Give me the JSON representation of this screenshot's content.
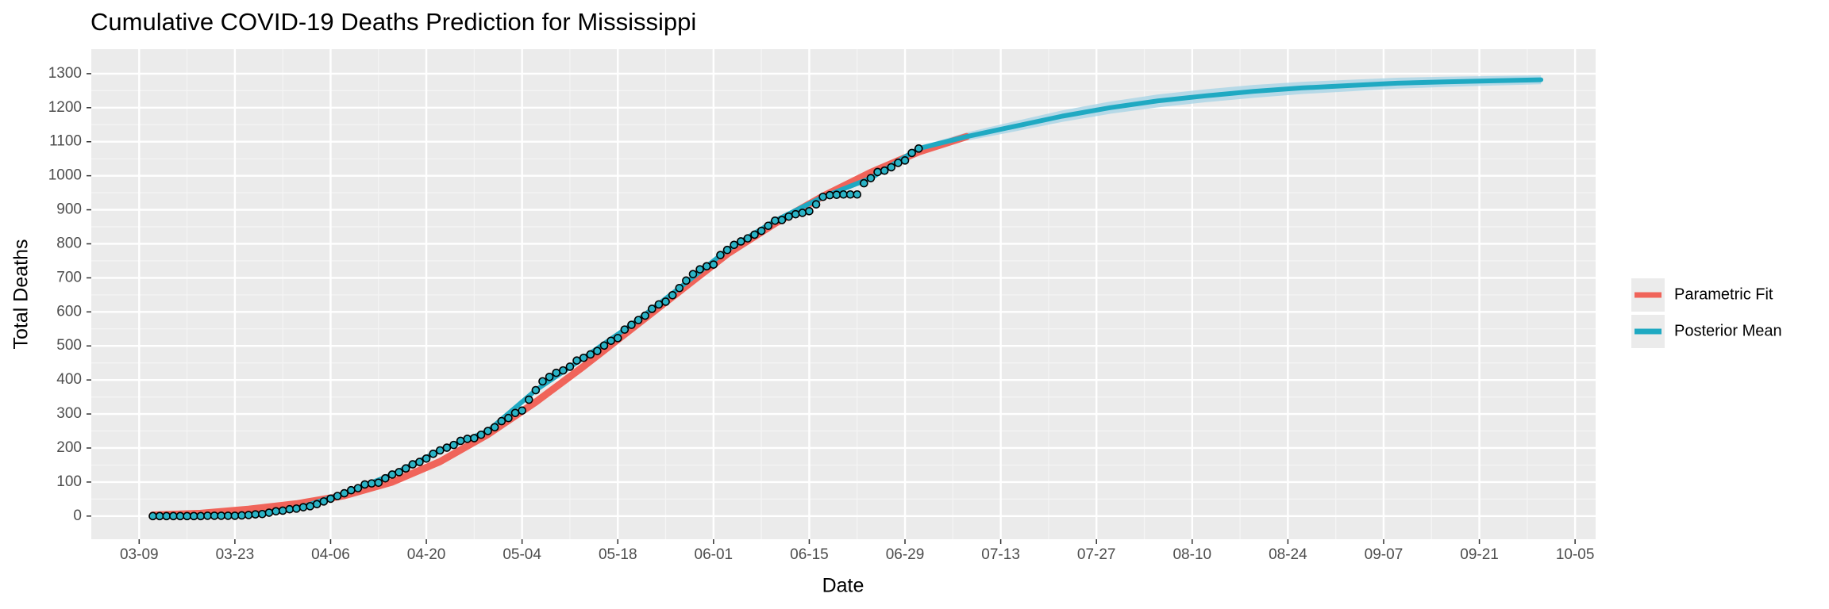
{
  "chart_data": {
    "type": "line",
    "title": "Cumulative COVID-19 Deaths Prediction for Mississippi",
    "x_label": "Date",
    "y_label": "Total Deaths",
    "xlim": [
      "03-02",
      "10-08"
    ],
    "ylim": [
      -68,
      1372
    ],
    "xticks": [
      "03-09",
      "03-23",
      "04-06",
      "04-20",
      "05-04",
      "05-18",
      "06-01",
      "06-15",
      "06-29",
      "07-13",
      "07-27",
      "08-10",
      "08-24",
      "09-07",
      "09-21",
      "10-05"
    ],
    "yticks": [
      0,
      100,
      200,
      300,
      400,
      500,
      600,
      700,
      800,
      900,
      1000,
      1100,
      1200,
      1300
    ],
    "grid": true,
    "legend": "right",
    "series": [
      {
        "name": "Parametric Fit",
        "color": "#f0645a",
        "x": [
          "03-11",
          "03-18",
          "03-25",
          "04-01",
          "04-08",
          "04-15",
          "04-22",
          "04-29",
          "05-06",
          "05-13",
          "05-20",
          "05-27",
          "06-03",
          "06-10",
          "06-17",
          "06-24",
          "07-01",
          "07-08"
        ],
        "values": [
          3,
          8,
          20,
          36,
          60,
          100,
          160,
          240,
          335,
          440,
          550,
          660,
          770,
          860,
          940,
          1010,
          1070,
          1115
        ]
      },
      {
        "name": "Posterior Mean",
        "color": "#1fa9c2",
        "band_color": "#a9d4e6",
        "x": [
          "03-11",
          "03-18",
          "03-25",
          "04-01",
          "04-08",
          "04-15",
          "04-22",
          "04-29",
          "05-06",
          "05-13",
          "05-20",
          "05-27",
          "06-03",
          "06-10",
          "06-17",
          "06-24",
          "07-01",
          "07-08",
          "07-15",
          "07-22",
          "07-29",
          "08-05",
          "08-12",
          "08-19",
          "08-26",
          "09-02",
          "09-09",
          "09-16",
          "09-23",
          "09-30"
        ],
        "values": [
          0,
          0,
          3,
          22,
          67,
          122,
          193,
          250,
          370,
          465,
          562,
          670,
          782,
          868,
          938,
          993,
          1080,
          1115,
          1145,
          1175,
          1200,
          1220,
          1235,
          1248,
          1258,
          1265,
          1272,
          1276,
          1279,
          1282
        ],
        "band": {
          "lower": [
            0,
            0,
            2,
            20,
            64,
            118,
            188,
            245,
            364,
            459,
            556,
            664,
            776,
            862,
            932,
            987,
            1074,
            1103,
            1130,
            1158,
            1182,
            1201,
            1216,
            1229,
            1240,
            1248,
            1256,
            1261,
            1265,
            1269
          ],
          "upper": [
            1,
            1,
            5,
            25,
            70,
            126,
            198,
            255,
            376,
            471,
            568,
            676,
            788,
            874,
            944,
            999,
            1086,
            1127,
            1160,
            1192,
            1218,
            1239,
            1254,
            1267,
            1276,
            1282,
            1288,
            1291,
            1293,
            1295
          ]
        }
      }
    ],
    "points": {
      "color": "#2ab3c6",
      "x": [
        "03-11",
        "03-12",
        "03-13",
        "03-14",
        "03-15",
        "03-16",
        "03-17",
        "03-18",
        "03-19",
        "03-20",
        "03-21",
        "03-22",
        "03-23",
        "03-24",
        "03-25",
        "03-26",
        "03-27",
        "03-28",
        "03-29",
        "03-30",
        "03-31",
        "04-01",
        "04-02",
        "04-03",
        "04-04",
        "04-05",
        "04-06",
        "04-07",
        "04-08",
        "04-09",
        "04-10",
        "04-11",
        "04-12",
        "04-13",
        "04-14",
        "04-15",
        "04-16",
        "04-17",
        "04-18",
        "04-19",
        "04-20",
        "04-21",
        "04-22",
        "04-23",
        "04-24",
        "04-25",
        "04-26",
        "04-27",
        "04-28",
        "04-29",
        "04-30",
        "05-01",
        "05-02",
        "05-03",
        "05-04",
        "05-05",
        "05-06",
        "05-07",
        "05-08",
        "05-09",
        "05-10",
        "05-11",
        "05-12",
        "05-13",
        "05-14",
        "05-15",
        "05-16",
        "05-17",
        "05-18",
        "05-19",
        "05-20",
        "05-21",
        "05-22",
        "05-23",
        "05-24",
        "05-25",
        "05-26",
        "05-27",
        "05-28",
        "05-29",
        "05-30",
        "05-31",
        "06-01",
        "06-02",
        "06-03",
        "06-04",
        "06-05",
        "06-06",
        "06-07",
        "06-08",
        "06-09",
        "06-10",
        "06-11",
        "06-12",
        "06-13",
        "06-14",
        "06-15",
        "06-16",
        "06-17",
        "06-18",
        "06-19",
        "06-20",
        "06-21",
        "06-22",
        "06-23",
        "06-24",
        "06-25",
        "06-26",
        "06-27",
        "06-28",
        "06-29",
        "06-30",
        "07-01"
      ],
      "values": [
        0,
        0,
        0,
        0,
        0,
        0,
        0,
        0,
        1,
        1,
        1,
        1,
        1,
        2,
        3,
        5,
        6,
        10,
        14,
        16,
        20,
        22,
        26,
        29,
        35,
        43,
        51,
        59,
        67,
        76,
        82,
        93,
        96,
        98,
        111,
        122,
        129,
        140,
        152,
        159,
        169,
        183,
        193,
        201,
        209,
        221,
        227,
        229,
        239,
        250,
        261,
        279,
        288,
        303,
        310,
        342,
        370,
        396,
        409,
        421,
        428,
        439,
        457,
        465,
        475,
        485,
        501,
        515,
        523,
        548,
        562,
        576,
        589,
        609,
        622,
        630,
        649,
        670,
        692,
        711,
        725,
        734,
        739,
        767,
        782,
        797,
        807,
        816,
        827,
        838,
        853,
        868,
        870,
        880,
        887,
        891,
        896,
        916,
        938,
        943,
        944,
        945,
        945,
        945,
        978,
        993,
        1011,
        1015,
        1025,
        1038,
        1045,
        1067,
        1080
      ]
    }
  }
}
